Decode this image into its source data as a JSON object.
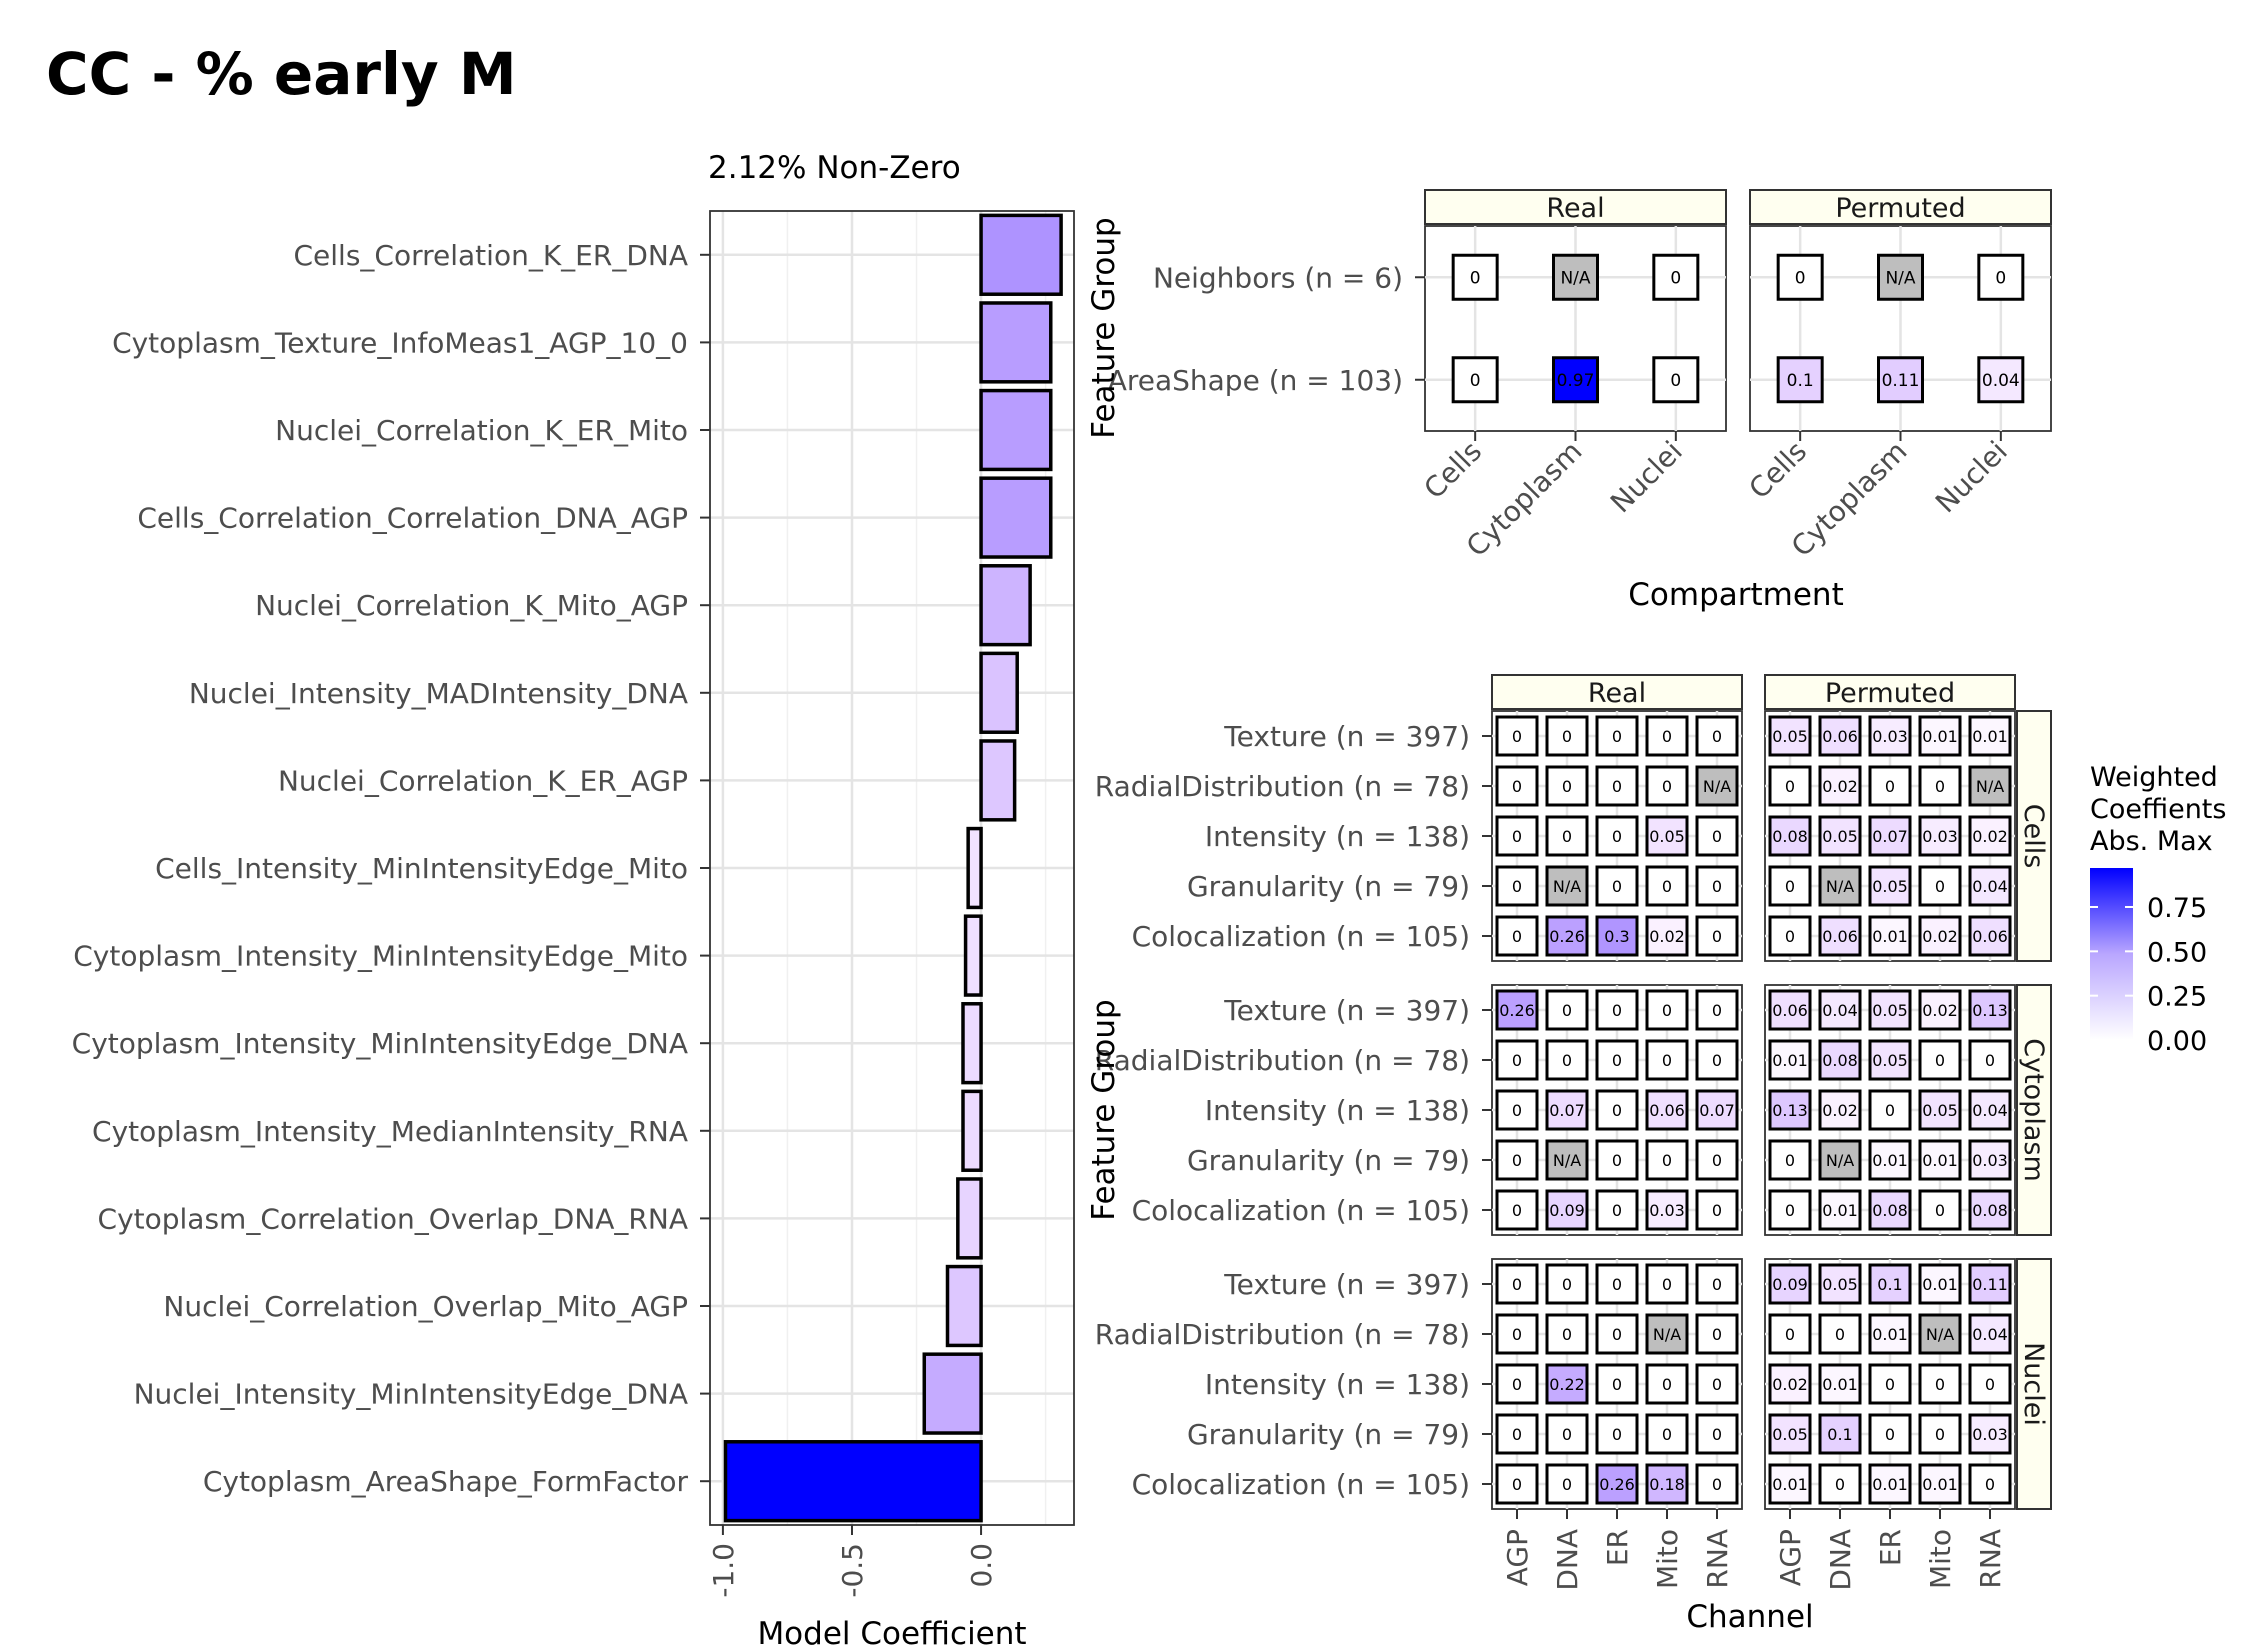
{
  "title": "CC - % early M",
  "chart_data": [
    {
      "type": "bar",
      "orientation": "horizontal",
      "subtitle": "2.12% Non-Zero",
      "xlabel": "Model Coefficient",
      "ylabel": "",
      "xlim": [
        -1.05,
        0.36
      ],
      "xticks": [
        "-1.0",
        "-0.5",
        "0.0"
      ],
      "grid": true,
      "categories": [
        "Cells_Correlation_K_ER_DNA",
        "Cytoplasm_Texture_InfoMeas1_AGP_10_0",
        "Nuclei_Correlation_K_ER_Mito",
        "Cells_Correlation_Correlation_DNA_AGP",
        "Nuclei_Correlation_K_Mito_AGP",
        "Nuclei_Intensity_MADIntensity_DNA",
        "Nuclei_Correlation_K_ER_AGP",
        "Cells_Intensity_MinIntensityEdge_Mito",
        "Cytoplasm_Intensity_MinIntensityEdge_Mito",
        "Cytoplasm_Intensity_MinIntensityEdge_DNA",
        "Cytoplasm_Intensity_MedianIntensity_RNA",
        "Cytoplasm_Correlation_Overlap_DNA_RNA",
        "Nuclei_Correlation_Overlap_Mito_AGP",
        "Nuclei_Intensity_MinIntensityEdge_DNA",
        "Cytoplasm_AreaShape_FormFactor"
      ],
      "values": [
        0.31,
        0.27,
        0.27,
        0.27,
        0.19,
        0.14,
        0.13,
        -0.05,
        -0.06,
        -0.07,
        -0.07,
        -0.09,
        -0.13,
        -0.22,
        -0.99
      ]
    },
    {
      "type": "heatmap",
      "xlabel": "Compartment",
      "ylabel": "Feature Group",
      "panels": [
        "Real",
        "Permuted"
      ],
      "x": [
        "Cells",
        "Cytoplasm",
        "Nuclei"
      ],
      "y": [
        "Neighbors (n = 6)",
        "AreaShape (n = 103)"
      ],
      "values": {
        "Real": [
          [
            "0",
            "N/A",
            "0"
          ],
          [
            "0",
            "0.97",
            "0"
          ]
        ],
        "Permuted": [
          [
            "0",
            "N/A",
            "0"
          ],
          [
            "0.1",
            "0.11",
            "0.04"
          ]
        ]
      }
    },
    {
      "type": "heatmap",
      "xlabel": "Channel",
      "ylabel": "Feature Group",
      "panels": [
        "Real",
        "Permuted"
      ],
      "facets": [
        "Cells",
        "Cytoplasm",
        "Nuclei"
      ],
      "x": [
        "AGP",
        "DNA",
        "ER",
        "Mito",
        "RNA"
      ],
      "y": [
        "Texture (n = 397)",
        "RadialDistribution (n = 78)",
        "Intensity (n = 138)",
        "Granularity (n = 79)",
        "Colocalization (n = 105)"
      ],
      "values": {
        "Cells": {
          "Real": [
            [
              "0",
              "0",
              "0",
              "0",
              "0"
            ],
            [
              "0",
              "0",
              "0",
              "0",
              "N/A"
            ],
            [
              "0",
              "0",
              "0",
              "0.05",
              "0"
            ],
            [
              "0",
              "N/A",
              "0",
              "0",
              "0"
            ],
            [
              "0",
              "0.26",
              "0.3",
              "0.02",
              "0"
            ]
          ],
          "Permuted": [
            [
              "0.05",
              "0.06",
              "0.03",
              "0.01",
              "0.01"
            ],
            [
              "0",
              "0.02",
              "0",
              "0",
              "N/A"
            ],
            [
              "0.08",
              "0.05",
              "0.07",
              "0.03",
              "0.02"
            ],
            [
              "0",
              "N/A",
              "0.05",
              "0",
              "0.04"
            ],
            [
              "0",
              "0.06",
              "0.01",
              "0.02",
              "0.06"
            ]
          ]
        },
        "Cytoplasm": {
          "Real": [
            [
              "0.26",
              "0",
              "0",
              "0",
              "0"
            ],
            [
              "0",
              "0",
              "0",
              "0",
              "0"
            ],
            [
              "0",
              "0.07",
              "0",
              "0.06",
              "0.07"
            ],
            [
              "0",
              "N/A",
              "0",
              "0",
              "0"
            ],
            [
              "0",
              "0.09",
              "0",
              "0.03",
              "0"
            ]
          ],
          "Permuted": [
            [
              "0.06",
              "0.04",
              "0.05",
              "0.02",
              "0.13"
            ],
            [
              "0.01",
              "0.08",
              "0.05",
              "0",
              "0"
            ],
            [
              "0.13",
              "0.02",
              "0",
              "0.05",
              "0.04"
            ],
            [
              "0",
              "N/A",
              "0.01",
              "0.01",
              "0.03"
            ],
            [
              "0",
              "0.01",
              "0.08",
              "0",
              "0.08"
            ]
          ]
        },
        "Nuclei": {
          "Real": [
            [
              "0",
              "0",
              "0",
              "0",
              "0"
            ],
            [
              "0",
              "0",
              "0",
              "N/A",
              "0"
            ],
            [
              "0",
              "0.22",
              "0",
              "0",
              "0"
            ],
            [
              "0",
              "0",
              "0",
              "0",
              "0"
            ],
            [
              "0",
              "0",
              "0.26",
              "0.18",
              "0"
            ]
          ],
          "Permuted": [
            [
              "0.09",
              "0.05",
              "0.1",
              "0.01",
              "0.11"
            ],
            [
              "0",
              "0",
              "0.01",
              "N/A",
              "0.04"
            ],
            [
              "0.02",
              "0.01",
              "0",
              "0",
              "0"
            ],
            [
              "0.05",
              "0.1",
              "0",
              "0",
              "0.03"
            ],
            [
              "0.01",
              "0",
              "0.01",
              "0.01",
              "0"
            ]
          ]
        }
      }
    }
  ],
  "legend": {
    "title": [
      "Weighted",
      "Coeffients",
      "Abs. Max"
    ],
    "ticks": [
      "0.75",
      "0.50",
      "0.25",
      "0.00"
    ],
    "tick_values": [
      0.75,
      0.5,
      0.25,
      0.0
    ],
    "range": [
      0,
      0.97
    ],
    "color_low": "#ffffff",
    "color_high": "#0000ff",
    "na_color": "#bebebe"
  }
}
